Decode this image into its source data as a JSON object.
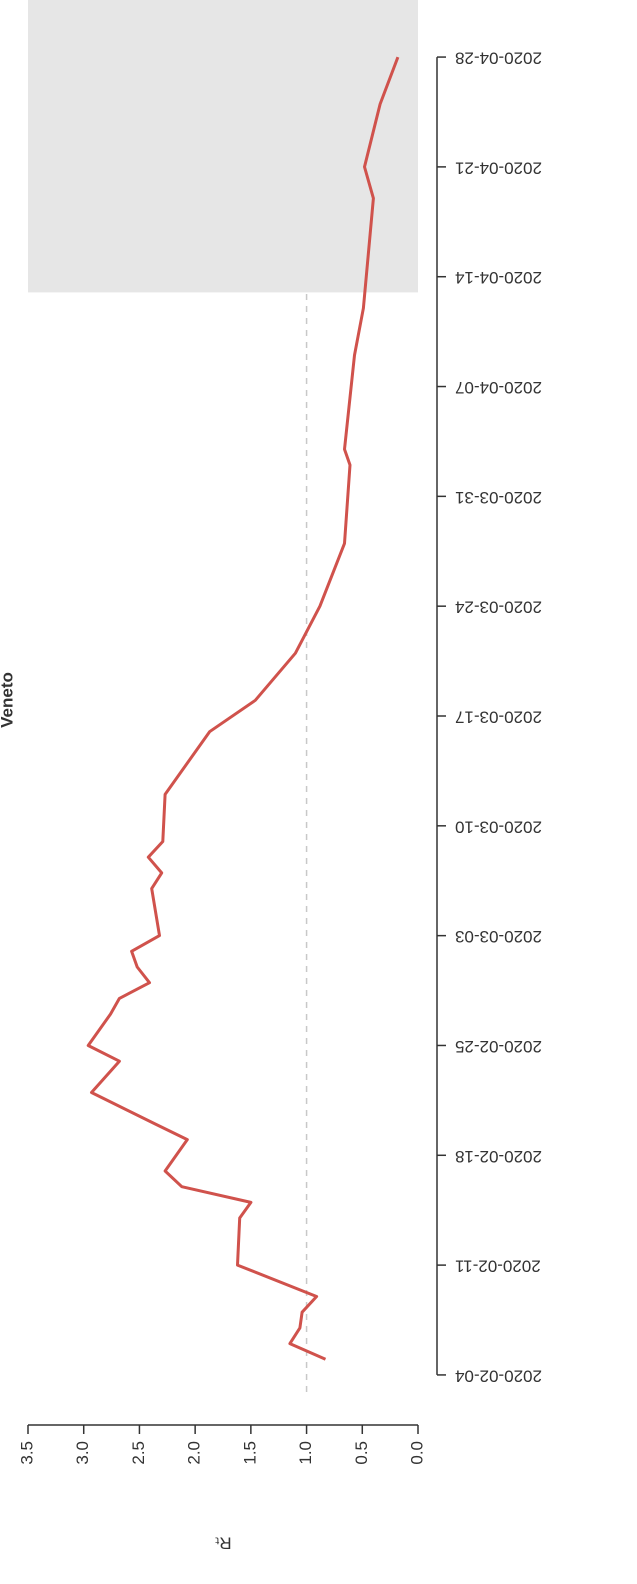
{
  "chart_data": {
    "type": "line",
    "title": "Veneto",
    "ylabel": "Rₜ",
    "orientation": "rotated-90-ccw",
    "x": [
      "2020-02-05",
      "2020-02-06",
      "2020-02-07",
      "2020-02-08",
      "2020-02-09",
      "2020-02-11",
      "2020-02-14",
      "2020-02-15",
      "2020-02-16",
      "2020-02-17",
      "2020-02-19",
      "2020-02-20",
      "2020-02-22",
      "2020-02-24",
      "2020-02-25",
      "2020-02-27",
      "2020-02-28",
      "2020-02-29",
      "2020-03-01",
      "2020-03-02",
      "2020-03-03",
      "2020-03-06",
      "2020-03-07",
      "2020-03-08",
      "2020-03-09",
      "2020-03-12",
      "2020-03-16",
      "2020-03-18",
      "2020-03-21",
      "2020-03-24",
      "2020-03-28",
      "2020-04-02",
      "2020-04-03",
      "2020-04-09",
      "2020-04-12",
      "2020-04-19",
      "2020-04-21",
      "2020-04-25",
      "2020-04-28"
    ],
    "values": [
      0.83,
      1.15,
      1.06,
      1.04,
      0.91,
      1.62,
      1.6,
      1.5,
      2.12,
      2.27,
      2.07,
      2.36,
      2.93,
      2.68,
      2.96,
      2.76,
      2.68,
      2.41,
      2.52,
      2.57,
      2.32,
      2.39,
      2.3,
      2.42,
      2.29,
      2.27,
      1.87,
      1.46,
      1.1,
      0.88,
      0.66,
      0.61,
      0.66,
      0.57,
      0.49,
      0.4,
      0.48,
      0.34,
      0.18
    ],
    "color": "#d0524c",
    "xlim": [
      "2020-02-01",
      "2020-05-01"
    ],
    "xticks": [
      "2020-02-04",
      "2020-02-11",
      "2020-02-18",
      "2020-02-25",
      "2020-03-03",
      "2020-03-10",
      "2020-03-17",
      "2020-03-24",
      "2020-03-31",
      "2020-04-07",
      "2020-04-14",
      "2020-04-21",
      "2020-04-28"
    ],
    "ylim": [
      0,
      3.5
    ],
    "yticks": [
      {
        "value": 0,
        "label": "0.0"
      },
      0.5,
      {
        "value": 1,
        "label": "1.0"
      },
      1.5,
      {
        "value": 2,
        "label": "2.0"
      },
      2.5,
      {
        "value": 3,
        "label": "3.0"
      },
      3.5
    ],
    "reference_line": 1,
    "shaded_from": "2020-04-13"
  }
}
